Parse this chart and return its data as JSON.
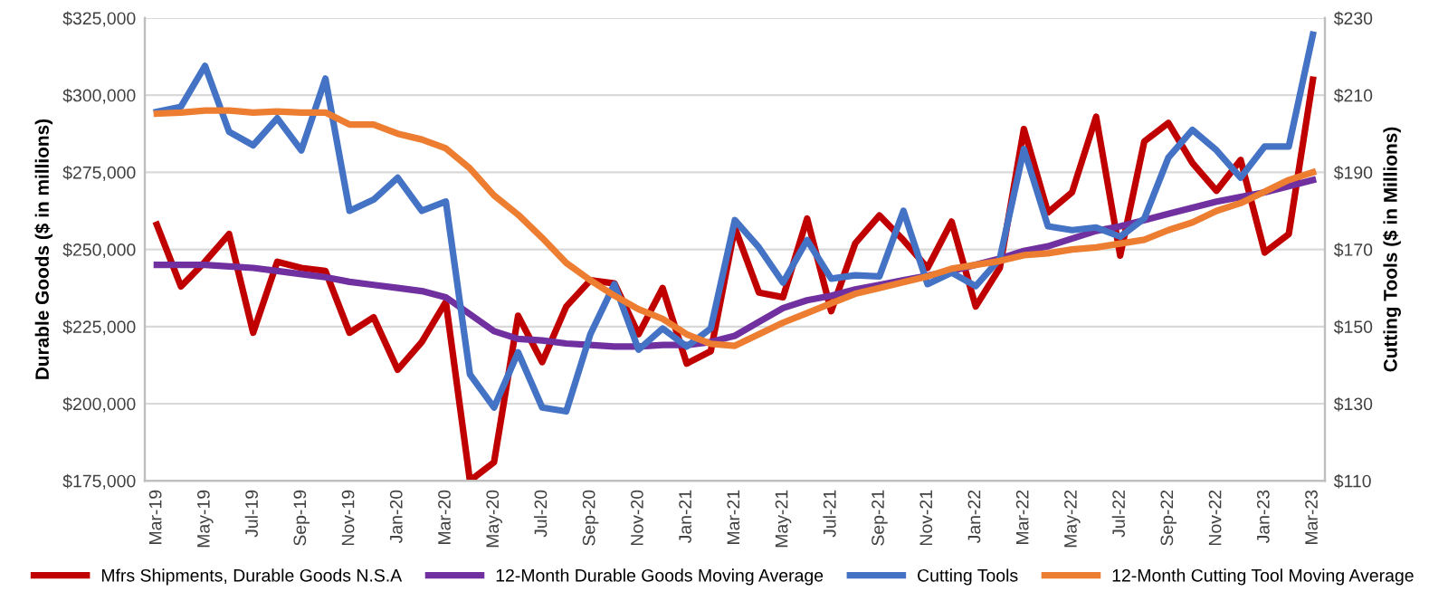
{
  "chart_data": {
    "type": "line",
    "categories": [
      "Mar-19",
      null,
      "May-19",
      null,
      "Jul-19",
      null,
      "Sep-19",
      null,
      "Nov-19",
      null,
      "Jan-20",
      null,
      "Mar-20",
      null,
      "May-20",
      null,
      "Jul-20",
      null,
      "Sep-20",
      null,
      "Nov-20",
      null,
      "Jan-21",
      null,
      "Mar-21",
      null,
      "May-21",
      null,
      "Jul-21",
      null,
      "Sep-21",
      null,
      "Nov-21",
      null,
      "Jan-22",
      null,
      "Mar-22",
      null,
      "May-22",
      null,
      "Jul-22",
      null,
      "Sep-22",
      null,
      "Nov-22",
      null,
      "Jan-23",
      null,
      "Mar-23"
    ],
    "ylabel": "Durable Goods ($ in millions)",
    "y2label": "Cutting Tools ($ in Millions)",
    "ylim": [
      175000,
      325000
    ],
    "yticks": [
      {
        "value": 175000,
        "label": "$175,000"
      },
      {
        "value": 200000,
        "label": "$200,000"
      },
      {
        "value": 225000,
        "label": "$225,000"
      },
      {
        "value": 250000,
        "label": "$250,000"
      },
      {
        "value": 275000,
        "label": "$275,000"
      },
      {
        "value": 300000,
        "label": "$300,000"
      },
      {
        "value": 325000,
        "label": "$325,000"
      }
    ],
    "y2lim": [
      110,
      230
    ],
    "y2ticks": [
      {
        "value": 110,
        "label": "$110"
      },
      {
        "value": 130,
        "label": "$130"
      },
      {
        "value": 150,
        "label": "$150"
      },
      {
        "value": 170,
        "label": "$170"
      },
      {
        "value": 190,
        "label": "$190"
      },
      {
        "value": 210,
        "label": "$210"
      },
      {
        "value": 230,
        "label": "$230"
      }
    ],
    "grid": "y",
    "legend": "bottom",
    "series": [
      {
        "name": "Mfrs Shipments, Durable Goods N.S.A",
        "color": "#c00000",
        "values": [
          258000,
          238000,
          246000,
          255000,
          223000,
          246000,
          244000,
          243000,
          223000,
          228000,
          211000,
          220000,
          233000,
          175000,
          181000,
          228500,
          213500,
          231500,
          240000,
          239000,
          222500,
          237500,
          213000,
          217000,
          257000,
          236000,
          234500,
          260000,
          230000,
          252000,
          261000,
          253000,
          244000,
          259000,
          231500,
          244000,
          289000,
          262000,
          268500,
          293000,
          248000,
          285000,
          291000,
          278000,
          269000,
          279000,
          249000,
          255000,
          305000
        ]
      },
      {
        "name": "12-Month Durable Goods Moving Average",
        "color": "#7030a0",
        "values": [
          245000,
          245000,
          245000,
          244500,
          244000,
          243000,
          242000,
          241000,
          239500,
          238500,
          237500,
          236500,
          234500,
          229000,
          223500,
          221000,
          220500,
          219500,
          219000,
          218500,
          218500,
          219000,
          219000,
          220000,
          222000,
          226500,
          231000,
          233500,
          235000,
          237000,
          238500,
          240000,
          241500,
          243000,
          245000,
          247000,
          249500,
          251000,
          253500,
          256000,
          257500,
          259500,
          261500,
          263500,
          265500,
          267000,
          268500,
          270500,
          272500
        ]
      },
      {
        "name": "Cutting Tools",
        "color": "#4472c4",
        "axis": "y2",
        "values": [
          205.7,
          207,
          217.6,
          200.5,
          197,
          204,
          195.7,
          214.3,
          180,
          182.9,
          188.6,
          180,
          182.4,
          137.6,
          129,
          143.3,
          129,
          128,
          148,
          161,
          144,
          149.5,
          144.8,
          149.5,
          177.6,
          170.5,
          161.4,
          172.4,
          162.4,
          163.3,
          163,
          180,
          161,
          164,
          160.5,
          167.6,
          196,
          176,
          175,
          175.7,
          173.3,
          178,
          193.8,
          201,
          195.7,
          188.6,
          196.7,
          196.7,
          225.7
        ]
      },
      {
        "name": "12-Month Cutting Tool Moving Average",
        "color": "#ed7d31",
        "axis": "y2",
        "values": [
          205.2,
          205.5,
          206,
          206,
          205.5,
          205.8,
          205.5,
          205.5,
          202.4,
          202.4,
          200,
          198.5,
          196.2,
          191,
          184,
          179,
          173,
          166.5,
          162,
          158,
          154.5,
          152,
          148,
          145.5,
          145,
          148,
          151,
          153.5,
          156,
          158.5,
          160,
          161.5,
          163,
          165,
          166,
          167,
          168.5,
          169,
          170,
          170.5,
          171.5,
          172.5,
          175,
          177,
          180,
          182,
          185,
          188,
          190
        ]
      }
    ]
  }
}
